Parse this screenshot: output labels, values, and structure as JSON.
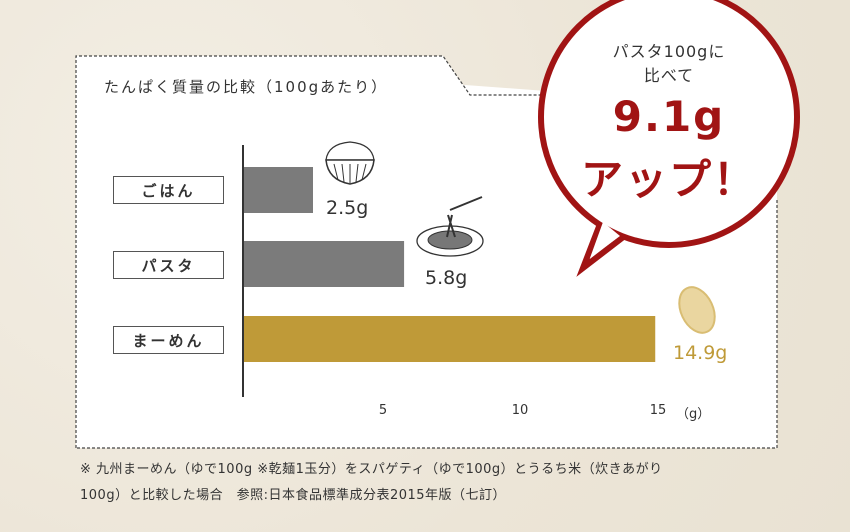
{
  "chart_data": {
    "type": "bar",
    "orientation": "horizontal",
    "title": "たんぱく質量の比較（100gあたり）",
    "categories": [
      "ごはん",
      "パスタ",
      "まーめん"
    ],
    "values": [
      2.5,
      5.8,
      14.9
    ],
    "value_labels": [
      "2.5g",
      "5.8g",
      "14.9g"
    ],
    "xlim": [
      0,
      15.5
    ],
    "xticks": [
      5,
      10,
      15
    ],
    "xtick_labels": [
      "5",
      "10",
      "15"
    ],
    "xunit": "（g）",
    "grid": false,
    "colors": [
      "#7b7b7b",
      "#7b7b7b",
      "#bf9a38"
    ],
    "icons": [
      "rice-bowl-icon",
      "pasta-plate-icon",
      "noodle-bundle-icon"
    ]
  },
  "callout": {
    "line1": "パスタ100gに",
    "line2": "比べて",
    "highlight1": "9.1g",
    "highlight2": "アップ！",
    "color": "#a11414"
  },
  "footnote": {
    "line1": "※ 九州まーめん（ゆで100g ※乾麺1玉分）をスパゲティ（ゆで100g）とうるち米（炊きあがり",
    "line2": "100g）と比較した場合　参照:日本食品標準成分表2015年版（七訂）"
  }
}
